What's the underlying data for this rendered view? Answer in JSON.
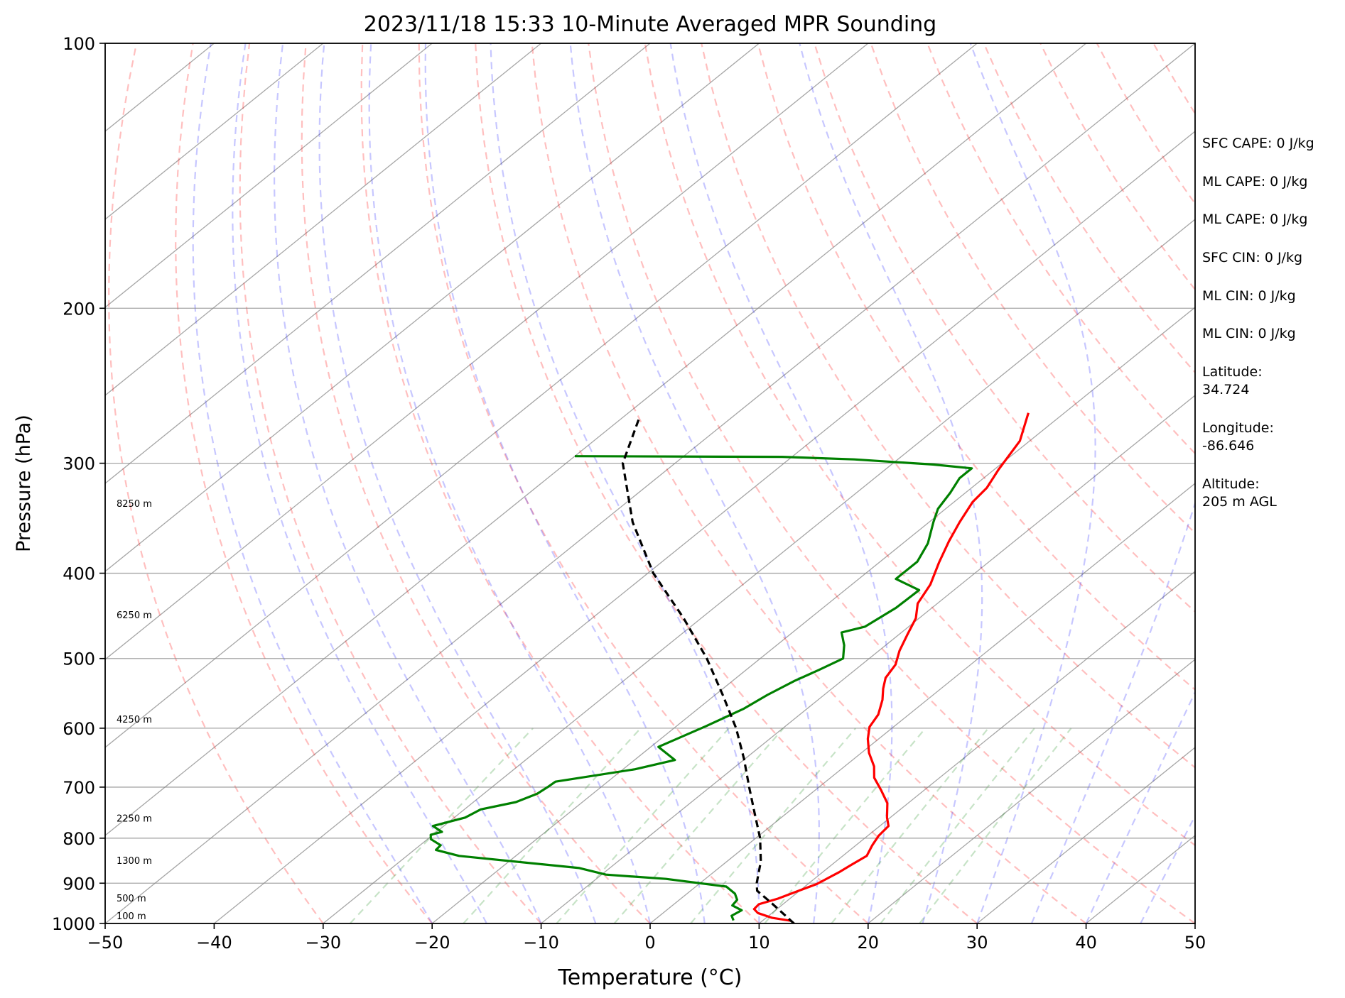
{
  "chart_data": {
    "type": "skew-t log-p sounding",
    "title": "2023/11/18 15:33 10-Minute Averaged MPR Sounding",
    "xlabel": "Temperature (°C)",
    "ylabel": "Pressure (hPa)",
    "xlim": [
      -50,
      50
    ],
    "ylim": [
      1000,
      100
    ],
    "y_scale": "log",
    "x_ticks": [
      -50,
      -40,
      -30,
      -20,
      -10,
      0,
      10,
      20,
      30,
      40,
      50
    ],
    "x_tick_labels": [
      "−50",
      "−40",
      "−30",
      "−20",
      "−10",
      "0",
      "10",
      "20",
      "30",
      "40",
      "50"
    ],
    "y_ticks": [
      1000,
      900,
      800,
      700,
      600,
      500,
      400,
      300,
      200,
      100
    ],
    "y_tick_labels": [
      "1000",
      "900",
      "800",
      "700",
      "600",
      "500",
      "400",
      "300",
      "200",
      "100"
    ],
    "grid": true,
    "colors": {
      "temperature": "#ff0000",
      "dewpoint": "#008000",
      "parcel": "#000000",
      "dry_adiabats": "#ff0000",
      "moist_adiabats": "#0000ff",
      "mixing_ratio": "#008000",
      "isotherms": "#888888"
    },
    "height_labels": [
      {
        "pressure": 1000,
        "label": "100 m"
      },
      {
        "pressure": 955,
        "label": "500 m"
      },
      {
        "pressure": 865,
        "label": "1300 m"
      },
      {
        "pressure": 775,
        "label": "2250 m"
      },
      {
        "pressure": 598,
        "label": "4250 m"
      },
      {
        "pressure": 455,
        "label": "6250 m"
      },
      {
        "pressure": 340,
        "label": "8250 m"
      }
    ],
    "series": [
      {
        "key": "temperature",
        "points": [
          {
            "p": 993,
            "t": 12.6
          },
          {
            "p": 985,
            "t": 10.5
          },
          {
            "p": 973,
            "t": 8.7
          },
          {
            "p": 963,
            "t": 7.9
          },
          {
            "p": 951,
            "t": 7.8
          },
          {
            "p": 937,
            "t": 8.9
          },
          {
            "p": 920,
            "t": 9.8
          },
          {
            "p": 902,
            "t": 10.8
          },
          {
            "p": 875,
            "t": 11.5
          },
          {
            "p": 858,
            "t": 11.8
          },
          {
            "p": 838,
            "t": 12.2
          },
          {
            "p": 815,
            "t": 11.5
          },
          {
            "p": 795,
            "t": 11.0
          },
          {
            "p": 775,
            "t": 10.8
          },
          {
            "p": 758,
            "t": 9.7
          },
          {
            "p": 730,
            "t": 8.1
          },
          {
            "p": 705,
            "t": 6.0
          },
          {
            "p": 683,
            "t": 4.0
          },
          {
            "p": 663,
            "t": 2.7
          },
          {
            "p": 640,
            "t": 0.7
          },
          {
            "p": 617,
            "t": -1.0
          },
          {
            "p": 598,
            "t": -2.2
          },
          {
            "p": 579,
            "t": -2.8
          },
          {
            "p": 557,
            "t": -4.1
          },
          {
            "p": 541,
            "t": -5.3
          },
          {
            "p": 526,
            "t": -6.3
          },
          {
            "p": 508,
            "t": -6.9
          },
          {
            "p": 490,
            "t": -8.1
          },
          {
            "p": 470,
            "t": -9.2
          },
          {
            "p": 450,
            "t": -10.3
          },
          {
            "p": 433,
            "t": -11.8
          },
          {
            "p": 412,
            "t": -12.8
          },
          {
            "p": 389,
            "t": -14.5
          },
          {
            "p": 368,
            "t": -16.0
          },
          {
            "p": 350,
            "t": -17.2
          },
          {
            "p": 332,
            "t": -18.3
          },
          {
            "p": 320,
            "t": -18.6
          },
          {
            "p": 305,
            "t": -19.6
          },
          {
            "p": 283,
            "t": -20.9
          },
          {
            "p": 263,
            "t": -23.3
          }
        ]
      },
      {
        "key": "dewpoint",
        "points": [
          {
            "p": 992,
            "t": 7.3
          },
          {
            "p": 980,
            "t": 6.6
          },
          {
            "p": 966,
            "t": 6.9
          },
          {
            "p": 954,
            "t": 5.5
          },
          {
            "p": 940,
            "t": 5.3
          },
          {
            "p": 925,
            "t": 4.4
          },
          {
            "p": 908,
            "t": 2.8
          },
          {
            "p": 890,
            "t": -3.6
          },
          {
            "p": 880,
            "t": -9.6
          },
          {
            "p": 865,
            "t": -12.8
          },
          {
            "p": 838,
            "t": -25.2
          },
          {
            "p": 825,
            "t": -28.0
          },
          {
            "p": 815,
            "t": -28.1
          },
          {
            "p": 802,
            "t": -29.7
          },
          {
            "p": 793,
            "t": -30.2
          },
          {
            "p": 787,
            "t": -29.5
          },
          {
            "p": 775,
            "t": -31.0
          },
          {
            "p": 758,
            "t": -29.0
          },
          {
            "p": 742,
            "t": -28.5
          },
          {
            "p": 728,
            "t": -26.1
          },
          {
            "p": 712,
            "t": -25.1
          },
          {
            "p": 700,
            "t": -24.9
          },
          {
            "p": 690,
            "t": -24.8
          },
          {
            "p": 668,
            "t": -18.9
          },
          {
            "p": 652,
            "t": -16.3
          },
          {
            "p": 630,
            "t": -19.3
          },
          {
            "p": 597,
            "t": -17.3
          },
          {
            "p": 570,
            "t": -15.8
          },
          {
            "p": 550,
            "t": -15.2
          },
          {
            "p": 530,
            "t": -14.3
          },
          {
            "p": 515,
            "t": -13.3
          },
          {
            "p": 500,
            "t": -12.4
          },
          {
            "p": 483,
            "t": -13.8
          },
          {
            "p": 467,
            "t": -15.5
          },
          {
            "p": 460,
            "t": -14.0
          },
          {
            "p": 438,
            "t": -13.3
          },
          {
            "p": 418,
            "t": -13.2
          },
          {
            "p": 406,
            "t": -16.6
          },
          {
            "p": 388,
            "t": -16.6
          },
          {
            "p": 370,
            "t": -17.7
          },
          {
            "p": 350,
            "t": -19.6
          },
          {
            "p": 338,
            "t": -20.7
          },
          {
            "p": 324,
            "t": -21.4
          },
          {
            "p": 312,
            "t": -22.2
          },
          {
            "p": 304,
            "t": -22.2
          },
          {
            "p": 301,
            "t": -26.2
          },
          {
            "p": 297,
            "t": -34.0
          },
          {
            "p": 295,
            "t": -40.9
          },
          {
            "p": 294.5,
            "t": -60.0
          }
        ]
      },
      {
        "key": "parcel",
        "points": [
          {
            "p": 1000,
            "t": 13.2
          },
          {
            "p": 950,
            "t": 9.0
          },
          {
            "p": 918,
            "t": 6.1
          },
          {
            "p": 900,
            "t": 5.2
          },
          {
            "p": 850,
            "t": 3.1
          },
          {
            "p": 800,
            "t": 0.4
          },
          {
            "p": 750,
            "t": -2.9
          },
          {
            "p": 700,
            "t": -6.4
          },
          {
            "p": 650,
            "t": -10.1
          },
          {
            "p": 600,
            "t": -14.3
          },
          {
            "p": 550,
            "t": -19.3
          },
          {
            "p": 500,
            "t": -24.9
          },
          {
            "p": 450,
            "t": -31.6
          },
          {
            "p": 400,
            "t": -39.5
          },
          {
            "p": 350,
            "t": -47.2
          },
          {
            "p": 300,
            "t": -54.8
          },
          {
            "p": 265,
            "t": -58.6
          }
        ]
      }
    ]
  },
  "stats": [
    {
      "key": "sfc-cape",
      "text": "SFC CAPE: 0 J/kg"
    },
    {
      "key": "ml-cape-1",
      "text": "ML CAPE: 0 J/kg"
    },
    {
      "key": "ml-cape-2",
      "text": "ML CAPE: 0 J/kg"
    },
    {
      "key": "sfc-cin",
      "text": "SFC CIN: 0 J/kg"
    },
    {
      "key": "ml-cin-1",
      "text": "ML CIN: 0 J/kg"
    },
    {
      "key": "ml-cin-2",
      "text": "ML CIN: 0 J/kg"
    },
    {
      "key": "latitude",
      "text": "Latitude:\n34.724"
    },
    {
      "key": "longitude",
      "text": "Longitude:\n-86.646"
    },
    {
      "key": "altitude",
      "text": "Altitude:\n205 m AGL"
    }
  ]
}
